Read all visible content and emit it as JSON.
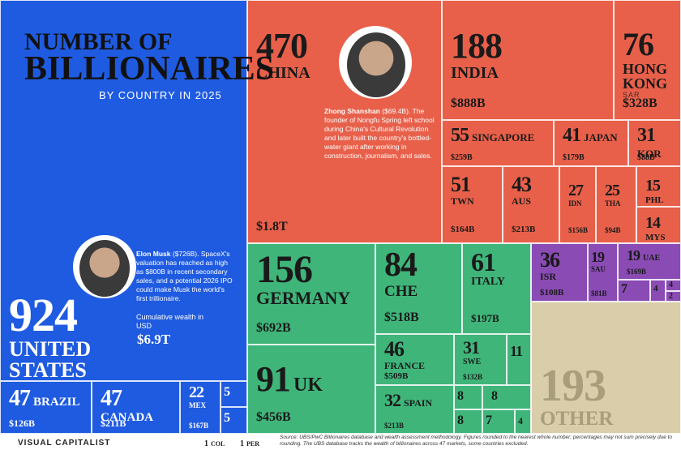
{
  "header": {
    "title_line1": "NUMBER OF",
    "title_line2": "BILLIONAIRES",
    "subtitle": "BY COUNTRY IN 2025"
  },
  "tiles": [
    {
      "count": 924,
      "name": "UNITED STATES",
      "wealth": "$6.9T"
    },
    {
      "count": 470,
      "name": "CHINA",
      "wealth": "$1.8T"
    },
    {
      "count": 188,
      "name": "INDIA",
      "wealth": "$888B"
    },
    {
      "count": 76,
      "name": "HONG KONG",
      "sub": "SAR",
      "wealth": "$328B"
    },
    {
      "count": 55,
      "name": "SINGAPORE",
      "wealth": "$259B"
    },
    {
      "count": 41,
      "name": "JAPAN",
      "wealth": "$179B"
    },
    {
      "count": 31,
      "name": "KOR",
      "wealth": "$88B"
    },
    {
      "count": 51,
      "name": "TWN",
      "wealth": "$164B"
    },
    {
      "count": 43,
      "name": "AUS",
      "wealth": "$213B"
    },
    {
      "count": 27,
      "name": "IDN",
      "wealth": "$156B"
    },
    {
      "count": 25,
      "name": "THA",
      "wealth": "$94B"
    },
    {
      "count": 15,
      "name": "PHL"
    },
    {
      "count": 14,
      "name": "MYS"
    },
    {
      "count": 156,
      "name": "GERMANY",
      "wealth": "$692B"
    },
    {
      "count": 91,
      "name": "UK",
      "wealth": "$456B"
    },
    {
      "count": 84,
      "name": "CHE",
      "wealth": "$518B"
    },
    {
      "count": 61,
      "name": "ITALY",
      "wealth": "$197B"
    },
    {
      "count": 46,
      "name": "FRANCE",
      "wealth": "$509B"
    },
    {
      "count": 32,
      "name": "SPAIN",
      "wealth": "$213B"
    },
    {
      "count": 31,
      "name": "SWE",
      "wealth": "$132B"
    },
    {
      "count": 11
    },
    {
      "count": 8
    },
    {
      "count": 8
    },
    {
      "count": 8
    },
    {
      "count": 7
    },
    {
      "count": 4
    },
    {
      "count": 36,
      "name": "ISR",
      "wealth": "$108B"
    },
    {
      "count": 19,
      "name": "SAU",
      "wealth": "$81B"
    },
    {
      "count": 19,
      "name": "UAE",
      "wealth": "$169B"
    },
    {
      "count": 7
    },
    {
      "count": 4
    },
    {
      "count": 4
    },
    {
      "count": 2
    },
    {
      "count": 193,
      "name": "OTHER"
    },
    {
      "count": 47,
      "name": "BRAZIL",
      "wealth": "$126B"
    },
    {
      "count": 47,
      "name": "CANADA",
      "wealth": "$211B"
    },
    {
      "count": 22,
      "name": "MEX",
      "wealth": "$167B"
    },
    {
      "count": 5
    },
    {
      "count": 5
    },
    {
      "count": 1,
      "name": "COL"
    },
    {
      "count": 1,
      "name": "PER"
    }
  ],
  "annotations": [
    {
      "name": "Zhong Shanshan",
      "text": "($69.4B). The founder of Nongfu Spring left school during China's Cultural Revolution and later built the country's bottled-water giant after working in construction, journalism, and sales."
    },
    {
      "name": "Elon Musk",
      "text": "($726B). SpaceX's valuation has reached as high as $800B in recent secondary sales, and a potential 2026 IPO could make Musk the world's first trillionaire."
    }
  ],
  "wealth_note": "Cumulative wealth in USD",
  "footer": {
    "brand": "VISUAL CAPITALIST",
    "source": "Source: UBS/PwC Billionaires database and wealth assessment methodology. Figures rounded to the nearest whole number; percentages may not sum precisely due to rounding. The UBS database tracks the wealth of billionaires across 47 markets, some countries excluded."
  }
}
